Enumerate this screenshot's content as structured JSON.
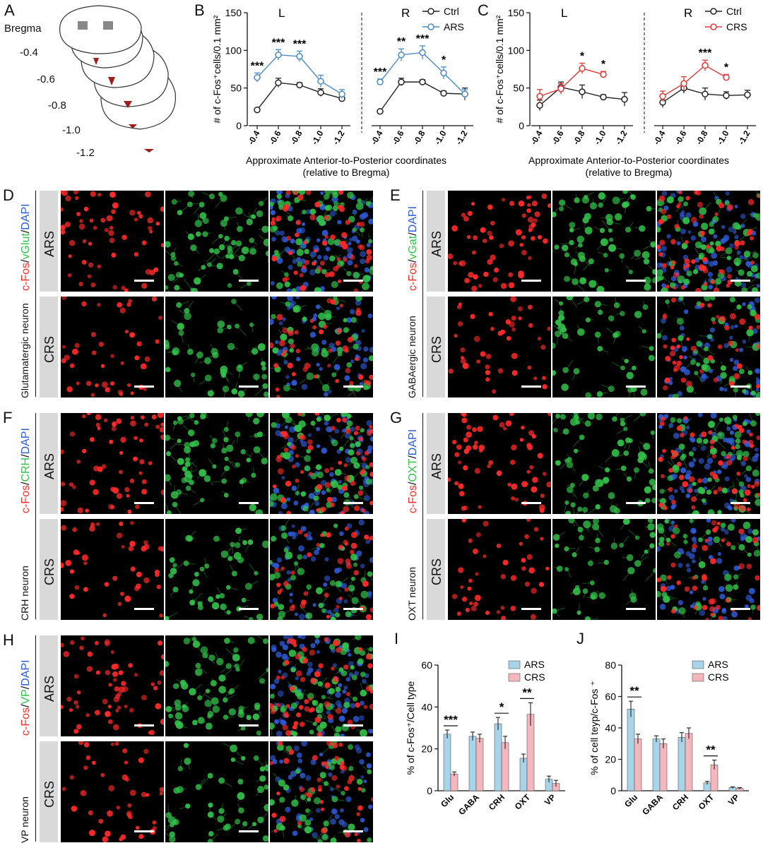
{
  "panel_letters": [
    "A",
    "B",
    "C",
    "D",
    "E",
    "F",
    "G",
    "H",
    "I",
    "J"
  ],
  "panelA": {
    "title": "Bregma",
    "levels": [
      "-0.4",
      "-0.6",
      "-0.8",
      "-1.0",
      "-1.2"
    ]
  },
  "lineCharts": {
    "xlabel": "Approximate Anterior-to-Posterior coordinates",
    "xlabel2": "(relative to Bregma)",
    "ylabel": "# of c-Fos⁺cells/0.1 mm²"
  },
  "chart_data": [
    {
      "panel": "B",
      "type": "line",
      "ylim": [
        0,
        150
      ],
      "yticks": [
        0,
        50,
        100,
        150
      ],
      "x": [
        "-0.4",
        "-0.6",
        "-0.8",
        "-1.0",
        "-1.2"
      ],
      "legend": [
        "Ctrl",
        "ARS"
      ],
      "halves": [
        {
          "title": "L",
          "series": [
            {
              "name": "Ctrl",
              "values": [
                21,
                57,
                54,
                44,
                36
              ],
              "err": [
                2,
                6,
                3,
                5,
                4
              ]
            },
            {
              "name": "ARS",
              "values": [
                64,
                94,
                92,
                59,
                42
              ],
              "err": [
                6,
                7,
                7,
                8,
                6
              ]
            }
          ],
          "stars": [
            "***",
            "***",
            "***",
            "",
            ""
          ]
        },
        {
          "title": "R",
          "series": [
            {
              "name": "Ctrl",
              "values": [
                19,
                58,
                58,
                43,
                42
              ],
              "err": [
                2,
                5,
                3,
                3,
                8
              ]
            },
            {
              "name": "ARS",
              "values": [
                58,
                94,
                97,
                70,
                42
              ],
              "err": [
                4,
                8,
                9,
                8,
                6
              ]
            }
          ],
          "stars": [
            "***",
            "**",
            "***",
            "*",
            ""
          ]
        }
      ]
    },
    {
      "panel": "C",
      "type": "line",
      "ylim": [
        0,
        150
      ],
      "yticks": [
        0,
        50,
        100,
        150
      ],
      "x": [
        "-0.4",
        "-0.6",
        "-0.8",
        "-1.0",
        "-1.2"
      ],
      "legend": [
        "Ctrl",
        "CRS"
      ],
      "halves": [
        {
          "title": "L",
          "series": [
            {
              "name": "Ctrl",
              "values": [
                27,
                51,
                45,
                38,
                35
              ],
              "err": [
                7,
                7,
                9,
                3,
                9
              ]
            },
            {
              "name": "CRS",
              "values": [
                39,
                49,
                76,
                68,
                null
              ],
              "err": [
                9,
                7,
                7,
                4,
                0
              ]
            }
          ],
          "stars": [
            "",
            "",
            "*",
            "*",
            ""
          ]
        },
        {
          "title": "R",
          "series": [
            {
              "name": "Ctrl",
              "values": [
                31,
                50,
                42,
                40,
                41
              ],
              "err": [
                7,
                7,
                8,
                5,
                6
              ]
            },
            {
              "name": "CRS",
              "values": [
                39,
                56,
                80,
                64,
                null
              ],
              "err": [
                7,
                9,
                7,
                4,
                0
              ]
            }
          ],
          "stars": [
            "",
            "",
            "***",
            "*",
            ""
          ]
        }
      ]
    },
    {
      "panel": "I",
      "type": "bar",
      "ylabel": "% of c-Fos⁺/Cell type",
      "ylim": [
        0,
        60
      ],
      "yticks": [
        0,
        20,
        40,
        60
      ],
      "categories": [
        "Glu",
        "GABA",
        "CRH",
        "OXT",
        "VP"
      ],
      "series": [
        {
          "name": "ARS",
          "values": [
            27,
            26,
            32,
            15.5,
            5.5
          ],
          "err": [
            2,
            2,
            3,
            2,
            1.5
          ]
        },
        {
          "name": "CRS",
          "values": [
            8,
            25,
            23,
            36.5,
            3.5
          ],
          "err": [
            1,
            2,
            3,
            5.5,
            1.5
          ]
        }
      ],
      "stars": [
        "***",
        "",
        "*",
        "**",
        ""
      ]
    },
    {
      "panel": "J",
      "type": "bar",
      "ylabel": "% of cell teyp/c-Fos ⁺",
      "ylim": [
        0,
        80
      ],
      "yticks": [
        0,
        20,
        40,
        60,
        80
      ],
      "categories": [
        "Glu",
        "GABA",
        "CRH",
        "OXT",
        "VP"
      ],
      "series": [
        {
          "name": "ARS",
          "values": [
            52,
            33,
            34,
            5,
            2
          ],
          "err": [
            5,
            2,
            3,
            1,
            0.5
          ]
        },
        {
          "name": "CRS",
          "values": [
            33,
            30,
            36.5,
            16.5,
            1.5
          ],
          "err": [
            3,
            3,
            3.5,
            3,
            0.5
          ]
        }
      ],
      "stars": [
        "**",
        "",
        "",
        "**",
        ""
      ]
    }
  ],
  "micrographs": [
    {
      "panel": "D",
      "stain_parts": [
        "c-Fos",
        "/",
        "vGlut",
        "/",
        "DAPI"
      ],
      "neuron": "Glutamatergic  neuron",
      "rows": [
        "ARS",
        "CRS"
      ]
    },
    {
      "panel": "E",
      "stain_parts": [
        "c-Fos",
        "/",
        "vGat",
        "/",
        "DAPI"
      ],
      "neuron": "GABAergic  neuron",
      "rows": [
        "ARS",
        "CRS"
      ]
    },
    {
      "panel": "F",
      "stain_parts": [
        "c-Fos",
        "/",
        "CRH",
        "/",
        "DAPI"
      ],
      "neuron": "CRH  neuron",
      "rows": [
        "ARS",
        "CRS"
      ]
    },
    {
      "panel": "G",
      "stain_parts": [
        "c-Fos",
        "/",
        "OXT",
        "/",
        "DAPI"
      ],
      "neuron": "OXT neuron",
      "rows": [
        "ARS",
        "CRS"
      ]
    },
    {
      "panel": "H",
      "stain_parts": [
        "c-Fos",
        "/",
        "VP",
        "/",
        "DAPI"
      ],
      "neuron": "VP  neuron",
      "rows": [
        "ARS",
        "CRS"
      ]
    }
  ],
  "colors": {
    "ctrl": "#222222",
    "ars_line": "#4a8bc4",
    "crs_line": "#e03a3a",
    "bar_ars": "#a8d4ea",
    "bar_crs": "#f3b7bd",
    "fos": "#ff2a2a",
    "marker": "#33c24a",
    "dapi": "#2f5bd8"
  }
}
